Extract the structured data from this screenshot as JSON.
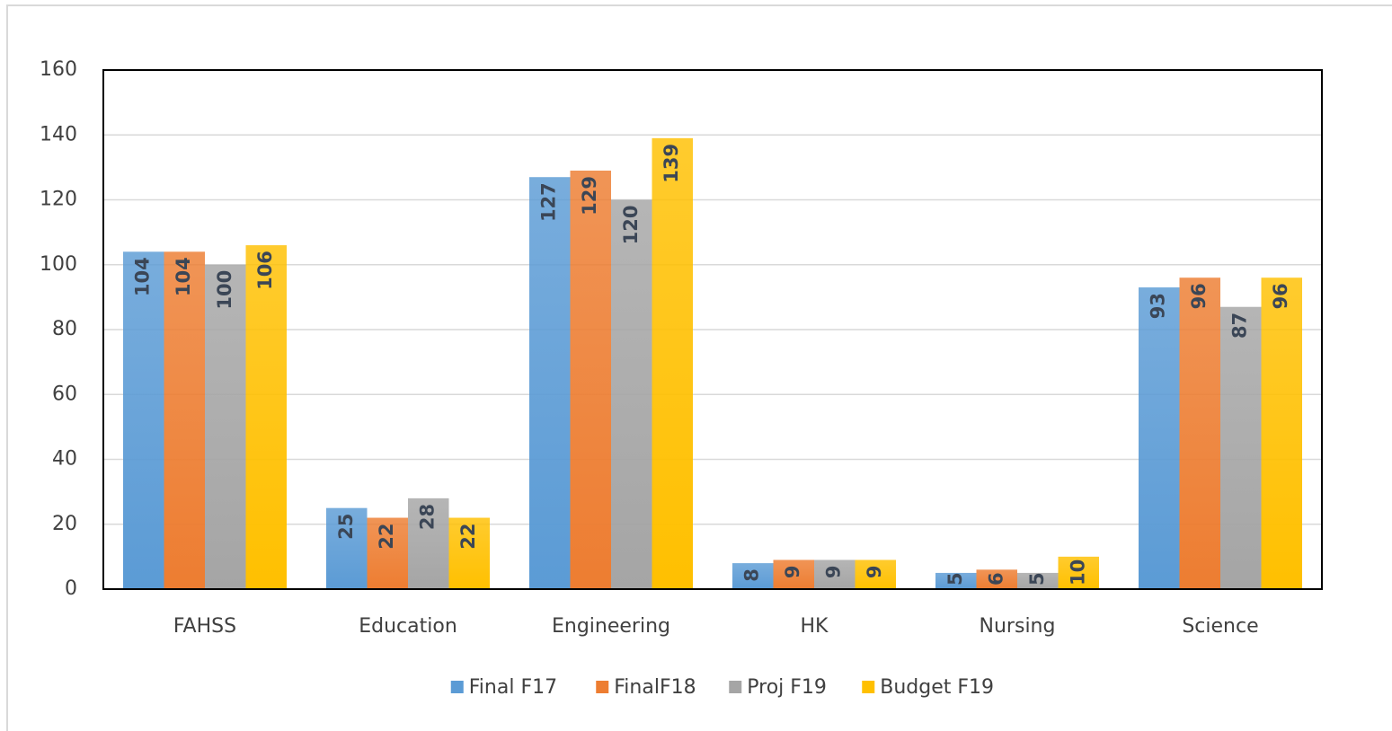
{
  "chart_data": {
    "type": "bar",
    "categories": [
      "FAHSS",
      "Education",
      "Engineering",
      "HK",
      "Nursing",
      "Science"
    ],
    "series": [
      {
        "name": "Final F17",
        "color": "#5b9bd5",
        "values": [
          104,
          25,
          127,
          8,
          5,
          93
        ]
      },
      {
        "name": "FinalF18",
        "color": "#ed7d31",
        "values": [
          104,
          22,
          129,
          9,
          6,
          96
        ]
      },
      {
        "name": "Proj F19",
        "color": "#a5a5a5",
        "values": [
          100,
          28,
          120,
          9,
          5,
          87
        ]
      },
      {
        "name": "Budget F19",
        "color": "#ffc000",
        "values": [
          106,
          22,
          139,
          9,
          10,
          96
        ]
      }
    ],
    "ylim": [
      0,
      160
    ],
    "yticks": [
      0,
      20,
      40,
      60,
      80,
      100,
      120,
      140,
      160
    ],
    "grid": true,
    "legend": "bottom"
  }
}
